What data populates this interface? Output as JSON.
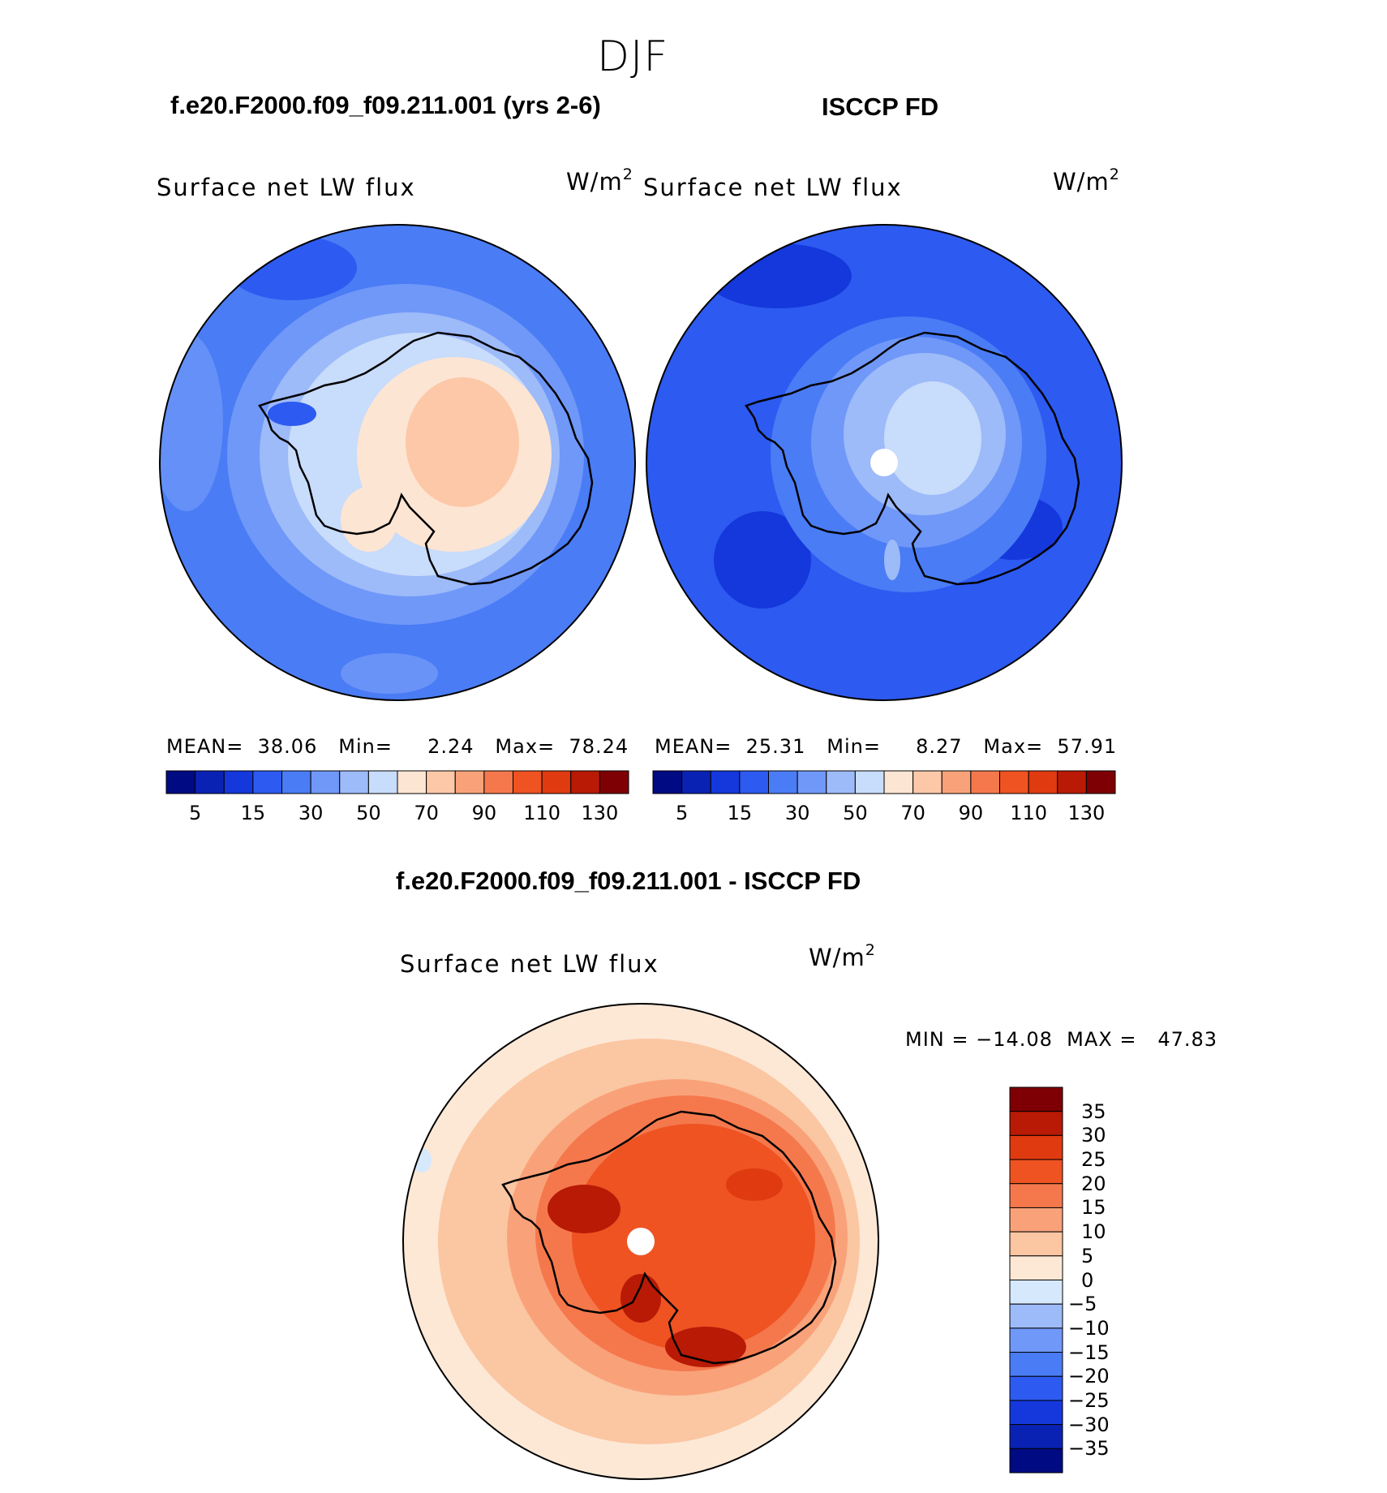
{
  "figure": {
    "season": "DJF"
  },
  "panels": [
    {
      "id": "model",
      "case_title": "f.e20.F2000.f09_f09.211.001 (yrs 2-6)",
      "variable": "Surface net LW flux",
      "units": "W/m",
      "units_exp": "2",
      "stats": {
        "mean_label": "MEAN=",
        "mean": "38.06",
        "min_label": "Min=",
        "min": "2.24",
        "max_label": "Max=",
        "max": "78.24"
      }
    },
    {
      "id": "obs",
      "case_title": "ISCCP FD",
      "variable": "Surface net LW flux",
      "units": "W/m",
      "units_exp": "2",
      "stats": {
        "mean_label": "MEAN=",
        "mean": "25.31",
        "min_label": "Min=",
        "min": "8.27",
        "max_label": "Max=",
        "max": "57.91"
      }
    },
    {
      "id": "diff",
      "case_title": "f.e20.F2000.f09_f09.211.001 - ISCCP FD",
      "variable": "Surface net LW flux",
      "units": "W/m",
      "units_exp": "2",
      "stats": {
        "text": "MIN = −14.08  MAX =   47.83"
      }
    }
  ],
  "colorbar_field": {
    "colors": [
      "#000a82",
      "#0a22b4",
      "#1438dc",
      "#2d5af0",
      "#4a7cf5",
      "#7098f8",
      "#9dbaf9",
      "#c8dcfb",
      "#fde5d3",
      "#fcc8a8",
      "#f9a27a",
      "#f5784c",
      "#ef5322",
      "#e03a10",
      "#b81a06",
      "#7e0004"
    ],
    "tick_labels": [
      "5",
      "15",
      "30",
      "50",
      "70",
      "90",
      "110",
      "130"
    ]
  },
  "colorbar_diff": {
    "colors": [
      "#000a82",
      "#0a22b4",
      "#1438dc",
      "#2d5af0",
      "#4a7cf5",
      "#7098f8",
      "#9dbaf9",
      "#d6e8fc",
      "#fde8d6",
      "#fbc6a2",
      "#f9a27a",
      "#f5784c",
      "#ef5322",
      "#e03a10",
      "#b81a06",
      "#7e0004"
    ],
    "tick_labels": [
      "35",
      "30",
      "25",
      "20",
      "15",
      "10",
      "5",
      "0",
      "−5",
      "−10",
      "−15",
      "−20",
      "−25",
      "−30",
      "−35"
    ]
  }
}
